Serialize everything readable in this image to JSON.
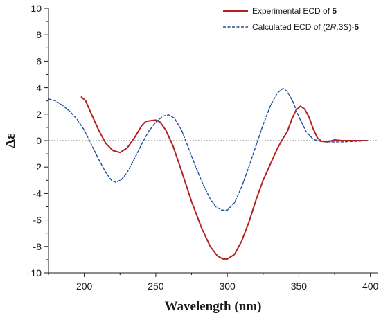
{
  "chart_data": {
    "type": "line",
    "xlabel": "Wavelength (nm)",
    "ylabel": "Δε",
    "xlim": [
      175,
      405
    ],
    "ylim": [
      -10,
      10
    ],
    "x_ticks": [
      200,
      250,
      300,
      350,
      400
    ],
    "y_ticks": [
      -10,
      -8,
      -6,
      -4,
      -2,
      0,
      2,
      4,
      6,
      8,
      10
    ],
    "zero_line": true,
    "legend_position": "top-right",
    "series": [
      {
        "name": "Experimental ECD of 5",
        "legend_parts": [
          {
            "text": "Experimental ECD of ",
            "style": "normal"
          },
          {
            "text": "5",
            "style": "bold"
          }
        ],
        "color": "#b22222",
        "style": "solid",
        "points": [
          [
            198,
            3.3
          ],
          [
            201,
            3.0
          ],
          [
            205,
            2.0
          ],
          [
            210,
            0.8
          ],
          [
            215,
            -0.2
          ],
          [
            220,
            -0.75
          ],
          [
            225,
            -0.9
          ],
          [
            230,
            -0.55
          ],
          [
            235,
            0.2
          ],
          [
            240,
            1.1
          ],
          [
            243,
            1.45
          ],
          [
            246,
            1.5
          ],
          [
            250,
            1.55
          ],
          [
            253,
            1.4
          ],
          [
            257,
            0.8
          ],
          [
            262,
            -0.4
          ],
          [
            268,
            -2.3
          ],
          [
            275,
            -4.6
          ],
          [
            282,
            -6.6
          ],
          [
            288,
            -8.0
          ],
          [
            293,
            -8.7
          ],
          [
            297,
            -8.95
          ],
          [
            300,
            -8.95
          ],
          [
            305,
            -8.6
          ],
          [
            310,
            -7.6
          ],
          [
            315,
            -6.2
          ],
          [
            320,
            -4.5
          ],
          [
            325,
            -3.0
          ],
          [
            330,
            -1.8
          ],
          [
            335,
            -0.6
          ],
          [
            338,
            0.0
          ],
          [
            342,
            0.7
          ],
          [
            345,
            1.6
          ],
          [
            348,
            2.3
          ],
          [
            351,
            2.6
          ],
          [
            354,
            2.4
          ],
          [
            357,
            1.8
          ],
          [
            360,
            0.9
          ],
          [
            363,
            0.2
          ],
          [
            366,
            -0.05
          ],
          [
            370,
            -0.1
          ],
          [
            375,
            0.05
          ],
          [
            380,
            0.0
          ],
          [
            390,
            0.0
          ],
          [
            398,
            0.0
          ]
        ]
      },
      {
        "name": "Calculated ECD of (2R,3S)-5",
        "legend_parts": [
          {
            "text": "Calculated ECD of (2",
            "style": "normal"
          },
          {
            "text": "R",
            "style": "italic"
          },
          {
            "text": ",3",
            "style": "normal"
          },
          {
            "text": "S",
            "style": "italic"
          },
          {
            "text": ")-",
            "style": "normal"
          },
          {
            "text": "5",
            "style": "bold"
          }
        ],
        "color": "#1f4e9c",
        "style": "dashed",
        "points": [
          [
            175,
            3.15
          ],
          [
            180,
            3.0
          ],
          [
            185,
            2.65
          ],
          [
            190,
            2.2
          ],
          [
            195,
            1.6
          ],
          [
            200,
            0.8
          ],
          [
            205,
            -0.3
          ],
          [
            210,
            -1.4
          ],
          [
            215,
            -2.4
          ],
          [
            219,
            -3.0
          ],
          [
            222,
            -3.15
          ],
          [
            226,
            -2.95
          ],
          [
            230,
            -2.4
          ],
          [
            235,
            -1.4
          ],
          [
            240,
            -0.3
          ],
          [
            245,
            0.7
          ],
          [
            250,
            1.4
          ],
          [
            255,
            1.85
          ],
          [
            259,
            1.95
          ],
          [
            263,
            1.7
          ],
          [
            268,
            0.8
          ],
          [
            273,
            -0.6
          ],
          [
            278,
            -2.0
          ],
          [
            283,
            -3.3
          ],
          [
            288,
            -4.4
          ],
          [
            292,
            -5.0
          ],
          [
            296,
            -5.25
          ],
          [
            300,
            -5.25
          ],
          [
            305,
            -4.7
          ],
          [
            310,
            -3.5
          ],
          [
            315,
            -2.0
          ],
          [
            320,
            -0.4
          ],
          [
            325,
            1.2
          ],
          [
            330,
            2.6
          ],
          [
            335,
            3.6
          ],
          [
            339,
            3.95
          ],
          [
            342,
            3.7
          ],
          [
            346,
            2.9
          ],
          [
            350,
            1.8
          ],
          [
            355,
            0.7
          ],
          [
            360,
            0.1
          ],
          [
            365,
            -0.05
          ],
          [
            372,
            -0.1
          ],
          [
            380,
            -0.1
          ],
          [
            390,
            -0.05
          ],
          [
            398,
            0.0
          ]
        ]
      }
    ]
  }
}
